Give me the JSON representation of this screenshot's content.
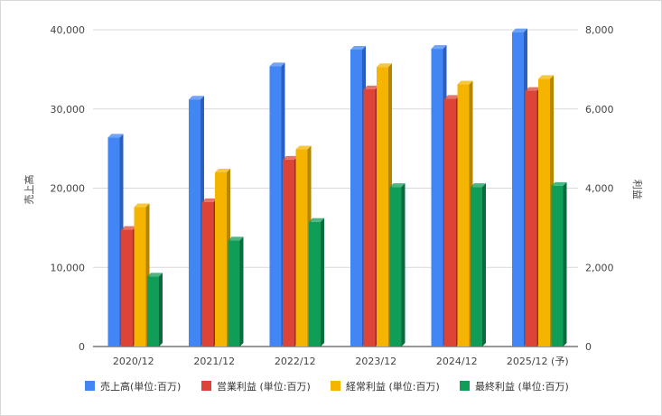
{
  "chart_data": {
    "type": "bar",
    "categories": [
      "2020/12",
      "2021/12",
      "2022/12",
      "2023/12",
      "2024/12",
      "2025/12 (予)"
    ],
    "y_left": {
      "label": "売上高",
      "min": 0,
      "max": 40000,
      "ticks": [
        "0",
        "10,000",
        "20,000",
        "30,000",
        "40,000"
      ],
      "tick_values": [
        0,
        10000,
        20000,
        30000,
        40000
      ]
    },
    "y_right": {
      "label": "利益",
      "min": 0,
      "max": 8000,
      "ticks": [
        "0",
        "2,000",
        "4,000",
        "6,000",
        "8,000"
      ],
      "tick_values": [
        0,
        2000,
        4000,
        6000,
        8000
      ]
    },
    "series": [
      {
        "name": "売上高(単位:百万)",
        "axis": "left",
        "color": "#4285F4",
        "side": "#2a5fc0",
        "values": [
          26400,
          31200,
          35400,
          37500,
          37600,
          39700
        ]
      },
      {
        "name": "営業利益 (単位:百万)",
        "axis": "right",
        "color": "#DB4437",
        "side": "#9e2a20",
        "values": [
          2950,
          3650,
          4720,
          6500,
          6260,
          6460
        ]
      },
      {
        "name": "経常利益 (単位:百万)",
        "axis": "right",
        "color": "#F4B400",
        "side": "#b58500",
        "values": [
          3520,
          4400,
          4980,
          7060,
          6620,
          6760
        ]
      },
      {
        "name": "最終利益 (単位:百万)",
        "axis": "right",
        "color": "#0F9D58",
        "side": "#0a6b3c",
        "values": [
          1770,
          2680,
          3150,
          4030,
          4030,
          4060
        ]
      }
    ],
    "grid": true,
    "legend_position": "bottom"
  }
}
